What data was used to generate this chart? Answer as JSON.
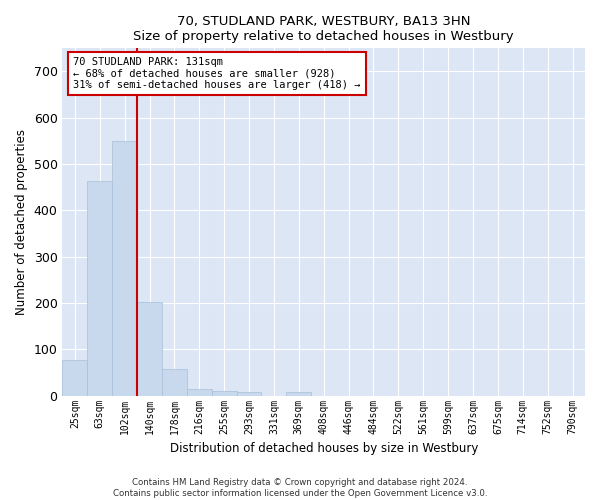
{
  "title": "70, STUDLAND PARK, WESTBURY, BA13 3HN",
  "subtitle": "Size of property relative to detached houses in Westbury",
  "xlabel": "Distribution of detached houses by size in Westbury",
  "ylabel": "Number of detached properties",
  "bar_color": "#c9d9ed",
  "bar_edge_color": "#a8bfd8",
  "background_color": "#dce6f5",
  "grid_color": "#ffffff",
  "annotation_line_color": "#cc0000",
  "annotation_box_edge_color": "#cc0000",
  "annotation_text_line1": "70 STUDLAND PARK: 131sqm",
  "annotation_text_line2": "← 68% of detached houses are smaller (928)",
  "annotation_text_line3": "31% of semi-detached houses are larger (418) →",
  "footer_text": "Contains HM Land Registry data © Crown copyright and database right 2024.\nContains public sector information licensed under the Open Government Licence v3.0.",
  "categories": [
    "25sqm",
    "63sqm",
    "102sqm",
    "140sqm",
    "178sqm",
    "216sqm",
    "255sqm",
    "293sqm",
    "331sqm",
    "369sqm",
    "408sqm",
    "446sqm",
    "484sqm",
    "522sqm",
    "561sqm",
    "599sqm",
    "637sqm",
    "675sqm",
    "714sqm",
    "752sqm",
    "790sqm"
  ],
  "values": [
    78,
    463,
    550,
    203,
    57,
    15,
    10,
    8,
    0,
    8,
    0,
    0,
    0,
    0,
    0,
    0,
    0,
    0,
    0,
    0,
    0
  ],
  "ylim": [
    0,
    750
  ],
  "yticks": [
    0,
    100,
    200,
    300,
    400,
    500,
    600,
    700
  ],
  "vline_x": 2.5,
  "fig_width": 6.0,
  "fig_height": 5.0,
  "dpi": 100
}
